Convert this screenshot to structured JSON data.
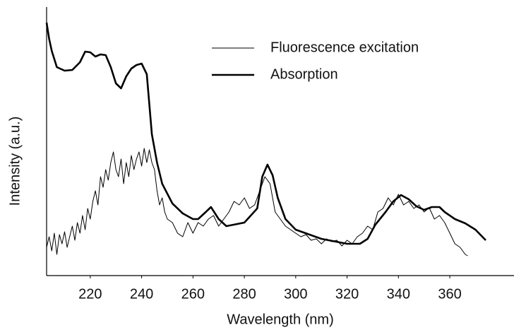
{
  "chart_data": {
    "type": "line",
    "xlabel": "Wavelength (nm)",
    "ylabel": "Intensity (a.u.)",
    "xlim": [
      203,
      385
    ],
    "xticks": [
      220,
      240,
      260,
      280,
      300,
      320,
      340,
      360
    ],
    "ylim": [
      0,
      380
    ],
    "legend": "upper right",
    "series": [
      {
        "name": "Fluorescence excitation",
        "color": "#000000",
        "width": 1,
        "x": [
          203,
          204,
          205,
          206,
          207,
          208,
          209,
          210,
          211,
          212,
          213,
          214,
          215,
          216,
          217,
          218,
          219,
          220,
          221,
          222,
          223,
          224,
          225,
          226,
          227,
          228,
          229,
          230,
          231,
          232,
          233,
          234,
          235,
          236,
          237,
          238,
          239,
          240,
          241,
          242,
          243,
          244,
          245,
          246,
          247,
          248,
          249,
          250,
          252,
          254,
          256,
          258,
          260,
          262,
          264,
          266,
          268,
          270,
          272,
          274,
          276,
          278,
          280,
          282,
          284,
          286,
          288,
          290,
          292,
          294,
          296,
          298,
          300,
          302,
          304,
          306,
          308,
          310,
          312,
          314,
          316,
          318,
          320,
          322,
          324,
          326,
          328,
          330,
          332,
          334,
          336,
          338,
          340,
          342,
          344,
          346,
          348,
          350,
          352,
          354,
          356,
          358,
          360,
          362,
          364,
          366,
          367
        ],
        "values": [
          40,
          55,
          35,
          60,
          30,
          58,
          45,
          62,
          40,
          55,
          70,
          50,
          75,
          60,
          85,
          65,
          95,
          80,
          105,
          120,
          100,
          140,
          125,
          150,
          135,
          160,
          175,
          150,
          140,
          165,
          130,
          160,
          140,
          170,
          150,
          165,
          175,
          155,
          180,
          160,
          178,
          160,
          150,
          120,
          100,
          110,
          90,
          80,
          75,
          60,
          55,
          75,
          60,
          75,
          70,
          80,
          85,
          70,
          80,
          90,
          105,
          100,
          110,
          95,
          100,
          120,
          140,
          130,
          90,
          80,
          70,
          65,
          60,
          55,
          58,
          50,
          52,
          45,
          52,
          48,
          50,
          42,
          50,
          45,
          55,
          60,
          70,
          65,
          90,
          95,
          110,
          100,
          115,
          100,
          105,
          95,
          100,
          90,
          96,
          80,
          85,
          75,
          60,
          45,
          40,
          30,
          28
        ]
      },
      {
        "name": "Absorption",
        "color": "#000000",
        "width": 2.6,
        "x": [
          203,
          204,
          205,
          207,
          210,
          213,
          216,
          218,
          220,
          222,
          224,
          226,
          228,
          230,
          232,
          234,
          236,
          238,
          240,
          242,
          244,
          246,
          248,
          252,
          256,
          260,
          262,
          265,
          267,
          270,
          273,
          280,
          285,
          287,
          289,
          291,
          293,
          296,
          300,
          310,
          320,
          325,
          328,
          331,
          335,
          338,
          341,
          344,
          347,
          350,
          353,
          356,
          358,
          362,
          366,
          370,
          374
        ],
        "values": [
          358,
          335,
          318,
          295,
          290,
          291,
          302,
          317,
          316,
          310,
          313,
          312,
          295,
          272,
          265,
          282,
          293,
          298,
          300,
          285,
          200,
          160,
          130,
          102,
          88,
          80,
          80,
          90,
          97,
          80,
          70,
          75,
          95,
          140,
          157,
          142,
          110,
          80,
          65,
          52,
          45,
          45,
          52,
          72,
          90,
          105,
          114,
          108,
          98,
          93,
          97,
          97,
          90,
          80,
          74,
          65,
          50
        ]
      }
    ]
  }
}
